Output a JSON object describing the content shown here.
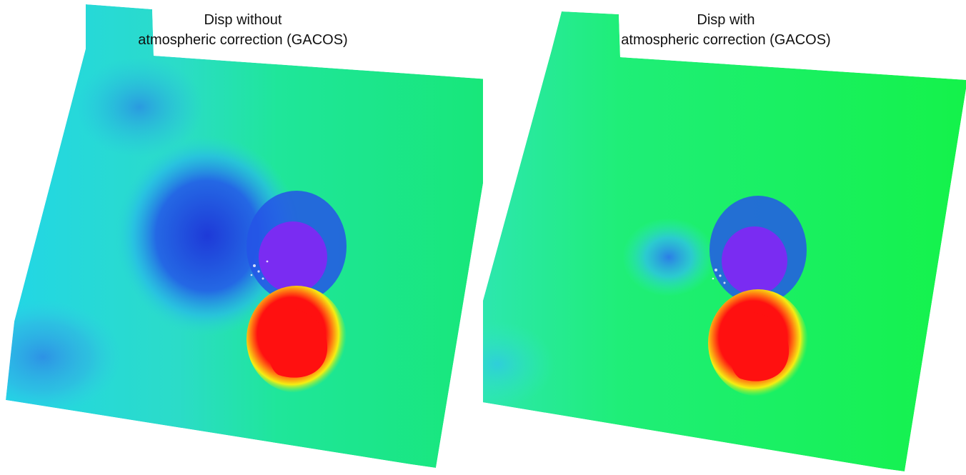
{
  "panels": [
    {
      "title_line1": "Disp without",
      "title_line2": "atmospheric correction (GACOS)",
      "colors": {
        "base": "#17e777",
        "far_field_west": "#22d6d6",
        "blue_zone": "#1e60e0",
        "purple_lobe": "#7a2cf2",
        "red_lobe": "#ff1010",
        "yellow_rim": "#f5ee12"
      }
    },
    {
      "title_line1": "Disp with",
      "title_line2": "atmospheric correction (GACOS)",
      "colors": {
        "base": "#14f24a",
        "far_field_west": "#2ee6b4",
        "blue_zone": "#1e60e0",
        "purple_lobe": "#7a2cf2",
        "red_lobe": "#ff1010",
        "yellow_rim": "#f5ee12"
      }
    }
  ]
}
